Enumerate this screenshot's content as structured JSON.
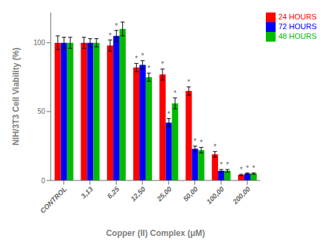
{
  "chart_data": {
    "type": "bar",
    "categories": [
      "CONTROL",
      "3,13",
      "6,25",
      "12,50",
      "25,00",
      "50,00",
      "100,00",
      "200,00"
    ],
    "series": [
      {
        "name": "24 HOURS",
        "color": "#FF0000",
        "values": [
          100,
          100,
          98,
          82,
          77,
          65,
          19,
          4
        ],
        "errors": [
          5,
          4,
          4,
          3,
          4,
          3,
          2,
          0.5
        ]
      },
      {
        "name": "72 HOURS",
        "color": "#0000FF",
        "values": [
          100,
          100,
          105,
          84,
          42,
          23,
          7,
          5
        ],
        "errors": [
          4,
          3,
          4,
          3,
          3,
          2,
          1,
          0.5
        ]
      },
      {
        "name": "48 HOURS",
        "color": "#00BB00",
        "values": [
          100,
          100,
          110,
          75,
          56,
          22,
          7,
          5
        ],
        "errors": [
          4,
          3,
          5,
          3,
          4,
          2,
          1,
          0.5
        ]
      }
    ],
    "xlabel": "Copper (II) Complex (μM)",
    "ylabel": "NIH/3T3 Cell Viability (%)",
    "ylim": [
      0,
      122
    ],
    "yticks": [
      0,
      50,
      100
    ],
    "grid": false,
    "legend": "upper right",
    "annotations": [
      {
        "text": "*",
        "series": "24 HOURS",
        "category": "6,25"
      },
      {
        "text": "*",
        "series": "24 HOURS",
        "category": "12,50"
      },
      {
        "text": "*",
        "series": "24 HOURS",
        "category": "25,00"
      },
      {
        "text": "*",
        "series": "24 HOURS",
        "category": "50,00"
      },
      {
        "text": "*",
        "series": "24 HOURS",
        "category": "100,00"
      },
      {
        "text": "*",
        "series": "24 HOURS",
        "category": "200,00"
      },
      {
        "text": "*",
        "series": "72 HOURS",
        "category": "6,25"
      },
      {
        "text": "*",
        "series": "72 HOURS",
        "category": "12,50"
      },
      {
        "text": "*",
        "series": "72 HOURS",
        "category": "25,00"
      },
      {
        "text": "*",
        "series": "72 HOURS",
        "category": "50,00"
      },
      {
        "text": "*",
        "series": "72 HOURS",
        "category": "100,00"
      },
      {
        "text": "*",
        "series": "72 HOURS",
        "category": "200,00"
      },
      {
        "text": "*",
        "series": "48 HOURS",
        "category": "12,50"
      },
      {
        "text": "*",
        "series": "48 HOURS",
        "category": "25,00"
      },
      {
        "text": "*",
        "series": "48 HOURS",
        "category": "50,00"
      },
      {
        "text": "*",
        "series": "48 HOURS",
        "category": "100,00"
      },
      {
        "text": "*",
        "series": "48 HOURS",
        "category": "200,00"
      }
    ]
  }
}
